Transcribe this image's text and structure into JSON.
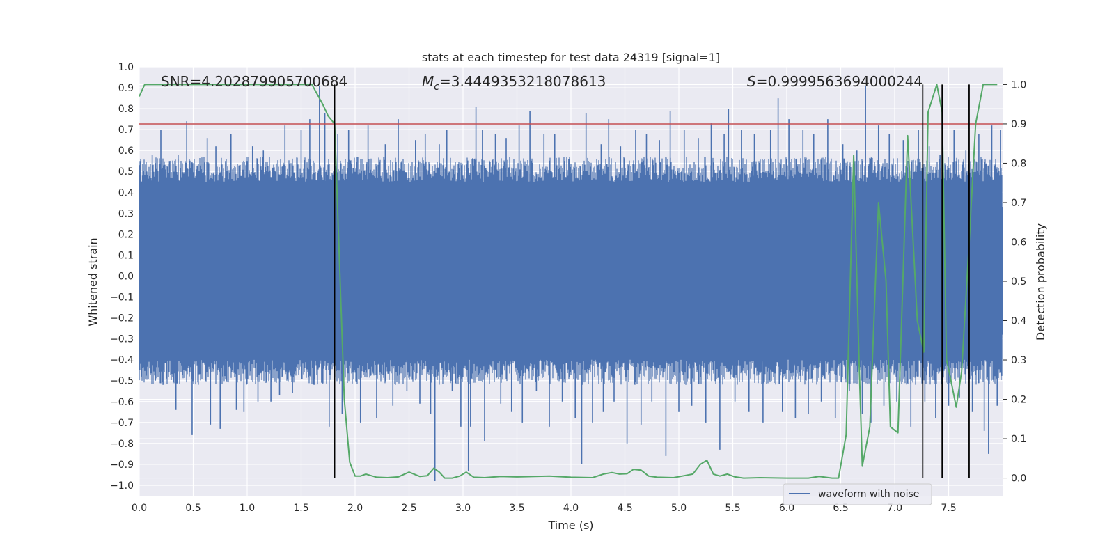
{
  "chart_data": {
    "type": "line",
    "title": "stats at each timestep for test data 24319 [signal=1]",
    "xlabel": "Time (s)",
    "ylabel": "Whitened strain",
    "y2label": "Detection probability",
    "xlim": [
      0.0,
      8.0
    ],
    "ylim": [
      -1.05,
      1.0
    ],
    "y2lim": [
      -0.045,
      1.045
    ],
    "x_ticks": [
      "0.0",
      "0.5",
      "1.0",
      "1.5",
      "2.0",
      "2.5",
      "3.0",
      "3.5",
      "4.0",
      "4.5",
      "5.0",
      "5.5",
      "6.0",
      "6.5",
      "7.0",
      "7.5"
    ],
    "y_ticks": [
      "−1.0",
      "−0.9",
      "−0.8",
      "−0.7",
      "−0.6",
      "−0.5",
      "−0.4",
      "−0.3",
      "−0.2",
      "−0.1",
      "0.0",
      "0.1",
      "0.2",
      "0.3",
      "0.4",
      "0.5",
      "0.6",
      "0.7",
      "0.8",
      "0.9",
      "1.0"
    ],
    "y2_ticks": [
      "0.0",
      "0.1",
      "0.2",
      "0.3",
      "0.4",
      "0.5",
      "0.6",
      "0.7",
      "0.8",
      "0.9",
      "1.0"
    ],
    "annotations": {
      "snr": "SNR=4.202879905700684",
      "mc_symbol": "M",
      "mc_sub": "c",
      "mc_value": "=3.4449353218078613",
      "s_symbol": "S",
      "s_value": "=0.9999563694000244"
    },
    "legend": {
      "label": "waveform with noise",
      "location": "lower-right"
    },
    "threshold": 0.9,
    "detection_times": [
      1.81,
      7.26,
      7.44,
      7.69
    ],
    "waveform": {
      "name": "waveform with noise",
      "duration": 8.0,
      "core_amplitude": 0.45,
      "spikes": [
        {
          "t": 0.03,
          "v": 0.48
        },
        {
          "t": 0.08,
          "v": -0.43
        },
        {
          "t": 0.1,
          "v": 0.42
        },
        {
          "t": 0.12,
          "v": 0.58
        },
        {
          "t": 0.15,
          "v": -0.5
        },
        {
          "t": 0.2,
          "v": 0.7
        },
        {
          "t": 0.22,
          "v": -0.52
        },
        {
          "t": 0.28,
          "v": 0.55
        },
        {
          "t": 0.34,
          "v": -0.64
        },
        {
          "t": 0.36,
          "v": 0.58
        },
        {
          "t": 0.44,
          "v": 0.74
        },
        {
          "t": 0.49,
          "v": -0.76
        },
        {
          "t": 0.53,
          "v": 0.5
        },
        {
          "t": 0.58,
          "v": 0.48
        },
        {
          "t": 0.63,
          "v": 0.66
        },
        {
          "t": 0.66,
          "v": -0.71
        },
        {
          "t": 0.71,
          "v": 0.62
        },
        {
          "t": 0.75,
          "v": -0.73
        },
        {
          "t": 0.8,
          "v": 0.55
        },
        {
          "t": 0.85,
          "v": 0.68
        },
        {
          "t": 0.9,
          "v": -0.64
        },
        {
          "t": 0.97,
          "v": -0.65
        },
        {
          "t": 1.0,
          "v": 0.55
        },
        {
          "t": 1.05,
          "v": 0.62
        },
        {
          "t": 1.1,
          "v": -0.6
        },
        {
          "t": 1.15,
          "v": 0.6
        },
        {
          "t": 1.22,
          "v": -0.6
        },
        {
          "t": 1.3,
          "v": -0.57
        },
        {
          "t": 1.35,
          "v": 0.72
        },
        {
          "t": 1.42,
          "v": -0.56
        },
        {
          "t": 1.5,
          "v": 0.7
        },
        {
          "t": 1.58,
          "v": 0.75
        },
        {
          "t": 1.62,
          "v": -0.52
        },
        {
          "t": 1.67,
          "v": 0.91
        },
        {
          "t": 1.69,
          "v": -0.51
        },
        {
          "t": 1.72,
          "v": 0.78
        },
        {
          "t": 1.76,
          "v": -0.72
        },
        {
          "t": 1.84,
          "v": 0.68
        },
        {
          "t": 1.88,
          "v": -0.66
        },
        {
          "t": 1.94,
          "v": 0.7
        },
        {
          "t": 2.02,
          "v": 0.57
        },
        {
          "t": 2.05,
          "v": -0.7
        },
        {
          "t": 2.12,
          "v": 0.72
        },
        {
          "t": 2.2,
          "v": -0.68
        },
        {
          "t": 2.28,
          "v": 0.63
        },
        {
          "t": 2.35,
          "v": -0.62
        },
        {
          "t": 2.4,
          "v": 0.75
        },
        {
          "t": 2.48,
          "v": -0.55
        },
        {
          "t": 2.56,
          "v": 0.65
        },
        {
          "t": 2.6,
          "v": -0.61
        },
        {
          "t": 2.65,
          "v": 0.68
        },
        {
          "t": 2.7,
          "v": -0.66
        },
        {
          "t": 2.74,
          "v": -0.98
        },
        {
          "t": 2.78,
          "v": 0.63
        },
        {
          "t": 2.85,
          "v": 0.7
        },
        {
          "t": 2.9,
          "v": -0.55
        },
        {
          "t": 2.98,
          "v": -0.72
        },
        {
          "t": 3.05,
          "v": -0.93
        },
        {
          "t": 3.07,
          "v": -0.72
        },
        {
          "t": 3.12,
          "v": 0.81
        },
        {
          "t": 3.18,
          "v": 0.7
        },
        {
          "t": 3.2,
          "v": -0.79
        },
        {
          "t": 3.3,
          "v": 0.68
        },
        {
          "t": 3.35,
          "v": -0.61
        },
        {
          "t": 3.4,
          "v": 0.66
        },
        {
          "t": 3.45,
          "v": -0.65
        },
        {
          "t": 3.52,
          "v": 0.72
        },
        {
          "t": 3.55,
          "v": -0.7
        },
        {
          "t": 3.62,
          "v": 0.79
        },
        {
          "t": 3.68,
          "v": -0.55
        },
        {
          "t": 3.75,
          "v": 0.68
        },
        {
          "t": 3.8,
          "v": -0.72
        },
        {
          "t": 3.85,
          "v": 0.68
        },
        {
          "t": 3.92,
          "v": -0.6
        },
        {
          "t": 3.98,
          "v": 0.56
        },
        {
          "t": 4.04,
          "v": -0.68
        },
        {
          "t": 4.1,
          "v": -0.9
        },
        {
          "t": 4.14,
          "v": 0.78
        },
        {
          "t": 4.2,
          "v": -0.7
        },
        {
          "t": 4.28,
          "v": 0.63
        },
        {
          "t": 4.3,
          "v": -0.65
        },
        {
          "t": 4.35,
          "v": 0.75
        },
        {
          "t": 4.4,
          "v": -0.6
        },
        {
          "t": 4.46,
          "v": 0.62
        },
        {
          "t": 4.52,
          "v": -0.8
        },
        {
          "t": 4.6,
          "v": 0.7
        },
        {
          "t": 4.65,
          "v": -0.71
        },
        {
          "t": 4.7,
          "v": 0.68
        },
        {
          "t": 4.75,
          "v": -0.6
        },
        {
          "t": 4.82,
          "v": 0.65
        },
        {
          "t": 4.88,
          "v": -0.86
        },
        {
          "t": 4.92,
          "v": 0.79
        },
        {
          "t": 5.0,
          "v": -0.65
        },
        {
          "t": 5.05,
          "v": 0.7
        },
        {
          "t": 5.12,
          "v": -0.62
        },
        {
          "t": 5.18,
          "v": 0.66
        },
        {
          "t": 5.25,
          "v": -0.7
        },
        {
          "t": 5.3,
          "v": 0.73
        },
        {
          "t": 5.38,
          "v": -0.83
        },
        {
          "t": 5.42,
          "v": 0.68
        },
        {
          "t": 5.46,
          "v": 0.8
        },
        {
          "t": 5.52,
          "v": -0.6
        },
        {
          "t": 5.58,
          "v": 0.7
        },
        {
          "t": 5.65,
          "v": -0.65
        },
        {
          "t": 5.7,
          "v": 0.68
        },
        {
          "t": 5.78,
          "v": -0.7
        },
        {
          "t": 5.85,
          "v": 0.7
        },
        {
          "t": 5.92,
          "v": 0.85
        },
        {
          "t": 5.96,
          "v": -0.65
        },
        {
          "t": 6.02,
          "v": 0.75
        },
        {
          "t": 6.08,
          "v": -0.68
        },
        {
          "t": 6.15,
          "v": 0.7
        },
        {
          "t": 6.2,
          "v": -0.66
        },
        {
          "t": 6.25,
          "v": 0.68
        },
        {
          "t": 6.32,
          "v": -0.6
        },
        {
          "t": 6.38,
          "v": 0.75
        },
        {
          "t": 6.45,
          "v": -0.68
        },
        {
          "t": 6.52,
          "v": 0.63
        },
        {
          "t": 6.58,
          "v": -0.55
        },
        {
          "t": 6.65,
          "v": 0.6
        },
        {
          "t": 6.7,
          "v": -0.66
        },
        {
          "t": 6.73,
          "v": 0.91
        },
        {
          "t": 6.78,
          "v": -0.7
        },
        {
          "t": 6.85,
          "v": 0.72
        },
        {
          "t": 6.9,
          "v": -0.62
        },
        {
          "t": 6.95,
          "v": 0.68
        },
        {
          "t": 7.02,
          "v": -0.6
        },
        {
          "t": 7.08,
          "v": 0.65
        },
        {
          "t": 7.15,
          "v": -0.72
        },
        {
          "t": 7.22,
          "v": 0.7
        },
        {
          "t": 7.28,
          "v": -0.6
        },
        {
          "t": 7.32,
          "v": 0.62
        },
        {
          "t": 7.38,
          "v": -0.68
        },
        {
          "t": 7.42,
          "v": 0.58
        },
        {
          "t": 7.5,
          "v": -0.62
        },
        {
          "t": 7.55,
          "v": 0.7
        },
        {
          "t": 7.6,
          "v": -0.58
        },
        {
          "t": 7.66,
          "v": 0.6
        },
        {
          "t": 7.72,
          "v": -0.65
        },
        {
          "t": 7.78,
          "v": 0.68
        },
        {
          "t": 7.83,
          "v": -0.74
        },
        {
          "t": 7.87,
          "v": -0.85
        },
        {
          "t": 7.9,
          "v": 0.72
        },
        {
          "t": 7.95,
          "v": -0.62
        },
        {
          "t": 7.98,
          "v": 0.7
        }
      ]
    },
    "probability": {
      "name": "Detection probability",
      "points": [
        [
          0.0,
          0.97
        ],
        [
          0.05,
          1.0
        ],
        [
          0.5,
          1.0
        ],
        [
          1.0,
          1.0
        ],
        [
          1.6,
          1.0
        ],
        [
          1.7,
          0.95
        ],
        [
          1.75,
          0.92
        ],
        [
          1.81,
          0.9
        ],
        [
          1.9,
          0.2
        ],
        [
          1.95,
          0.04
        ],
        [
          2.0,
          0.005
        ],
        [
          2.05,
          0.005
        ],
        [
          2.1,
          0.01
        ],
        [
          2.2,
          0.002
        ],
        [
          2.3,
          0.001
        ],
        [
          2.4,
          0.003
        ],
        [
          2.5,
          0.015
        ],
        [
          2.6,
          0.004
        ],
        [
          2.67,
          0.006
        ],
        [
          2.73,
          0.025
        ],
        [
          2.78,
          0.015
        ],
        [
          2.83,
          0.0
        ],
        [
          2.9,
          0.0
        ],
        [
          2.97,
          0.005
        ],
        [
          3.03,
          0.015
        ],
        [
          3.1,
          0.002
        ],
        [
          3.2,
          0.001
        ],
        [
          3.35,
          0.004
        ],
        [
          3.5,
          0.003
        ],
        [
          3.8,
          0.005
        ],
        [
          4.0,
          0.002
        ],
        [
          4.2,
          0.001
        ],
        [
          4.3,
          0.01
        ],
        [
          4.38,
          0.014
        ],
        [
          4.45,
          0.01
        ],
        [
          4.52,
          0.011
        ],
        [
          4.58,
          0.022
        ],
        [
          4.65,
          0.02
        ],
        [
          4.72,
          0.005
        ],
        [
          4.8,
          0.002
        ],
        [
          4.95,
          0.001
        ],
        [
          5.05,
          0.006
        ],
        [
          5.13,
          0.01
        ],
        [
          5.2,
          0.035
        ],
        [
          5.26,
          0.045
        ],
        [
          5.32,
          0.01
        ],
        [
          5.38,
          0.005
        ],
        [
          5.45,
          0.01
        ],
        [
          5.52,
          0.003
        ],
        [
          5.6,
          0.0
        ],
        [
          5.75,
          0.001
        ],
        [
          6.0,
          0.0
        ],
        [
          6.2,
          0.0
        ],
        [
          6.3,
          0.004
        ],
        [
          6.42,
          0.0
        ],
        [
          6.48,
          0.0
        ],
        [
          6.55,
          0.11
        ],
        [
          6.62,
          0.82
        ],
        [
          6.67,
          0.3
        ],
        [
          6.7,
          0.03
        ],
        [
          6.77,
          0.13
        ],
        [
          6.85,
          0.7
        ],
        [
          6.92,
          0.5
        ],
        [
          6.96,
          0.13
        ],
        [
          7.03,
          0.115
        ],
        [
          7.12,
          0.87
        ],
        [
          7.21,
          0.4
        ],
        [
          7.27,
          0.32
        ],
        [
          7.31,
          0.93
        ],
        [
          7.39,
          1.0
        ],
        [
          7.44,
          0.93
        ],
        [
          7.48,
          0.3
        ],
        [
          7.52,
          0.25
        ],
        [
          7.57,
          0.18
        ],
        [
          7.62,
          0.27
        ],
        [
          7.69,
          0.6
        ],
        [
          7.75,
          0.9
        ],
        [
          7.82,
          1.0
        ],
        [
          7.95,
          1.0
        ]
      ]
    }
  }
}
